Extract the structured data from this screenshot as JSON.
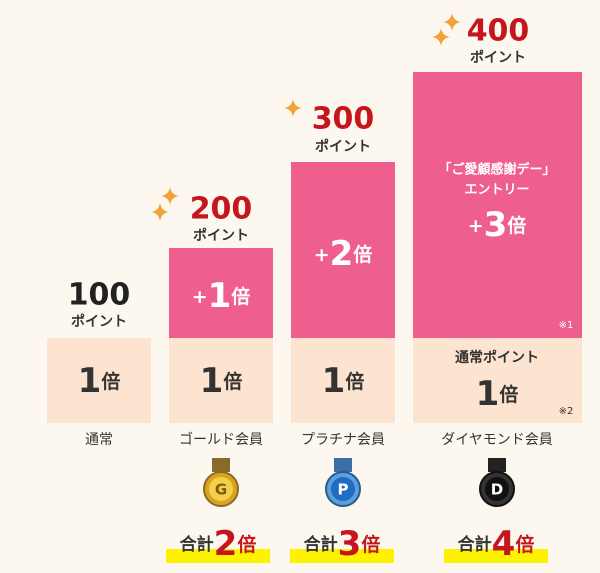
{
  "columns": [
    {
      "points": "100",
      "points_unit": "ポイント",
      "base": {
        "value": "1",
        "unit": "倍"
      },
      "label": "通常"
    },
    {
      "points": "200",
      "points_unit": "ポイント",
      "bonus": {
        "sign": "+",
        "value": "1",
        "unit": "倍"
      },
      "base": {
        "value": "1",
        "unit": "倍"
      },
      "label": "ゴールド会員",
      "medal": "G",
      "total": {
        "prefix": "合計",
        "value": "2",
        "unit": "倍"
      }
    },
    {
      "points": "300",
      "points_unit": "ポイント",
      "bonus": {
        "sign": "+",
        "value": "2",
        "unit": "倍"
      },
      "base": {
        "value": "1",
        "unit": "倍"
      },
      "label": "プラチナ会員",
      "medal": "P",
      "total": {
        "prefix": "合計",
        "value": "3",
        "unit": "倍"
      }
    },
    {
      "points": "400",
      "points_unit": "ポイント",
      "bonus": {
        "title": "「ご愛顧感謝デー」",
        "subtitle": "エントリー",
        "sign": "+",
        "value": "3",
        "unit": "倍",
        "note": "※1"
      },
      "base": {
        "title": "通常ポイント",
        "value": "1",
        "unit": "倍",
        "note": "※2"
      },
      "label": "ダイヤモンド会員",
      "medal": "D",
      "total": {
        "prefix": "合計",
        "value": "4",
        "unit": "倍"
      }
    }
  ]
}
